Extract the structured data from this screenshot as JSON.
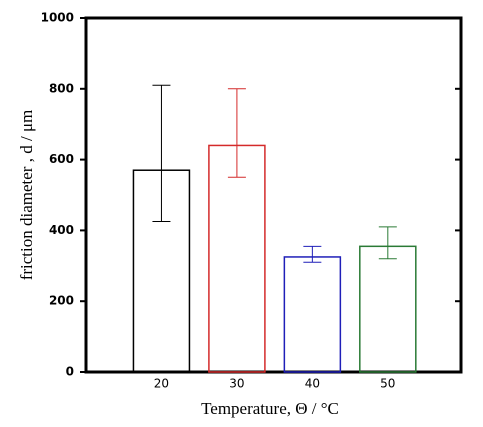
{
  "chart_data": {
    "type": "bar",
    "x_label": "Temperature, Θ  / °C",
    "y_label": "friction diameter , d / μm",
    "categories": [
      "20",
      "30",
      "40",
      "50"
    ],
    "values": [
      570,
      640,
      325,
      355
    ],
    "error_minus": [
      145,
      90,
      15,
      35
    ],
    "error_plus": [
      240,
      160,
      30,
      55
    ],
    "colors": [
      "#000000",
      "#d42a2a",
      "#1f1fb8",
      "#2a7a35"
    ],
    "ylim": [
      0,
      1000
    ],
    "yticks": [
      0,
      200,
      400,
      600,
      800,
      1000
    ],
    "grid": false
  }
}
